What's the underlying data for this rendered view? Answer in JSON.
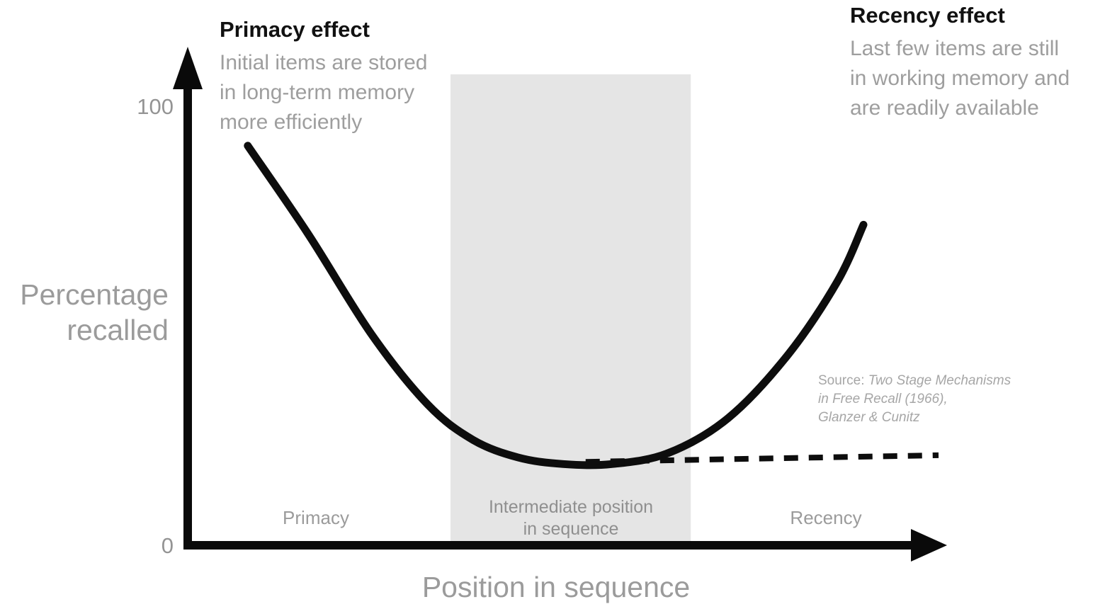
{
  "chart": {
    "y_axis": {
      "title_line1": "Percentage",
      "title_line2": "recalled",
      "tick_top": "100",
      "tick_bottom": "0"
    },
    "x_axis": {
      "title": "Position in sequence"
    },
    "region_labels": {
      "primacy": "Primacy",
      "recency": "Recency",
      "intermediate_line1": "Intermediate position",
      "intermediate_line2": "in sequence"
    },
    "annotations": {
      "primacy": {
        "title": "Primacy effect",
        "body_lines": [
          "Initial items are stored",
          "in long-term memory",
          "more efficiently"
        ]
      },
      "recency": {
        "title": "Recency effect",
        "body_lines": [
          "Last few items are still",
          "in working memory and",
          "are readily available"
        ]
      }
    },
    "source": {
      "prefix": "Source: ",
      "line1_italic": "Two Stage Mechanisms",
      "line2_italic": "in Free Recall (1966),",
      "line3_italic": "Glanzer & Cunitz"
    }
  },
  "chart_data": {
    "type": "line",
    "title": "Serial position curve: primacy and recency effects in free recall",
    "xlabel": "Position in sequence",
    "ylabel": "Percentage recalled",
    "ylim": [
      0,
      100
    ],
    "y_ticks": [
      0,
      100
    ],
    "x_ticks": [],
    "grid": false,
    "legend": false,
    "series": [
      {
        "name": "percentage-recalled-curve",
        "style": "solid",
        "points": [
          [
            8,
            91
          ],
          [
            16,
            71
          ],
          [
            24.5,
            48
          ],
          [
            32,
            32
          ],
          [
            38,
            24
          ],
          [
            44,
            20
          ],
          [
            50,
            18.5
          ],
          [
            56.5,
            18.5
          ],
          [
            64,
            21
          ],
          [
            72,
            29
          ],
          [
            80,
            43.5
          ],
          [
            86.5,
            60
          ],
          [
            90,
            73
          ]
        ]
      },
      {
        "name": "intermediate-baseline-dashed",
        "style": "dashed",
        "points": [
          [
            53,
            19
          ],
          [
            100,
            20.5
          ]
        ]
      }
    ],
    "highlight_band": {
      "label": "Intermediate position in sequence",
      "x_range_pct": [
        35,
        67
      ]
    },
    "colors": {
      "curve": "#0d0d0d",
      "axis": "#0a0a0a",
      "band": "#e5e5e5",
      "muted_text": "#9b9b9b",
      "title_text": "#111111"
    }
  }
}
